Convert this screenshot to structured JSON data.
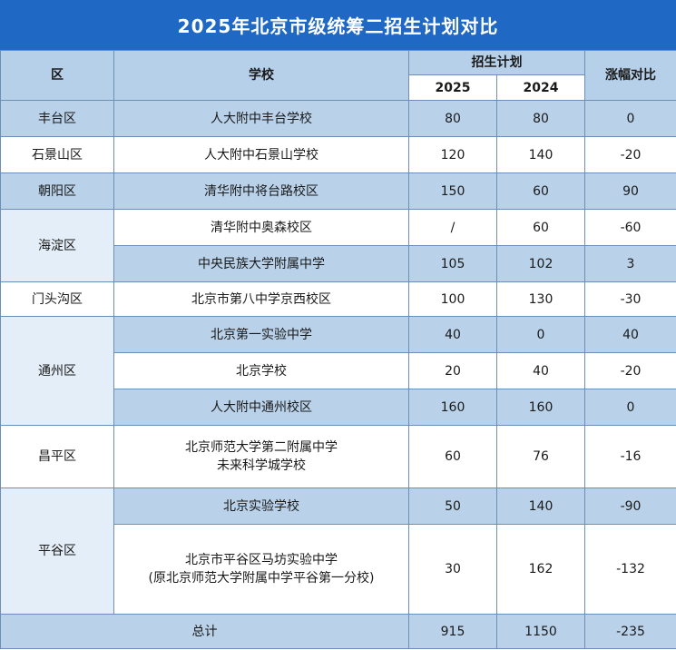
{
  "title": "2025年北京市级统筹二招生计划对比",
  "headers": {
    "district": "区",
    "school": "学校",
    "plan": "招生计划",
    "y2025": "2025",
    "y2024": "2024",
    "change": "涨幅对比"
  },
  "rows": [
    {
      "district": "丰台区",
      "school": [
        "人大附中丰台学校"
      ],
      "v2025": "80",
      "v2024": "80",
      "diff": "0"
    },
    {
      "district": "石景山区",
      "school": [
        "人大附中石景山学校"
      ],
      "v2025": "120",
      "v2024": "140",
      "diff": "-20"
    },
    {
      "district": "朝阳区",
      "school": [
        "清华附中将台路校区"
      ],
      "v2025": "150",
      "v2024": "60",
      "diff": "90"
    },
    {
      "district": "海淀区",
      "school": [
        "清华附中奥森校区"
      ],
      "v2025": "/",
      "v2024": "60",
      "diff": "-60"
    },
    {
      "district": "",
      "school": [
        "中央民族大学附属中学"
      ],
      "v2025": "105",
      "v2024": "102",
      "diff": "3"
    },
    {
      "district": "门头沟区",
      "school": [
        "北京市第八中学京西校区"
      ],
      "v2025": "100",
      "v2024": "130",
      "diff": "-30"
    },
    {
      "district": "通州区",
      "school": [
        "北京第一实验中学"
      ],
      "v2025": "40",
      "v2024": "0",
      "diff": "40"
    },
    {
      "district": "",
      "school": [
        "北京学校"
      ],
      "v2025": "20",
      "v2024": "40",
      "diff": "-20"
    },
    {
      "district": "",
      "school": [
        "人大附中通州校区"
      ],
      "v2025": "160",
      "v2024": "160",
      "diff": "0"
    },
    {
      "district": "昌平区",
      "school": [
        "北京师范大学第二附属中学",
        "未来科学城学校"
      ],
      "v2025": "60",
      "v2024": "76",
      "diff": "-16"
    },
    {
      "district": "平谷区",
      "school": [
        "北京实验学校"
      ],
      "v2025": "50",
      "v2024": "140",
      "diff": "-90"
    },
    {
      "district": "",
      "school": [
        "北京市平谷区马坊实验中学",
        "(原北京师范大学附属中学平谷第一分校)"
      ],
      "v2025": "30",
      "v2024": "162",
      "diff": "-132"
    }
  ],
  "total": {
    "label": "总计",
    "v2025": "915",
    "v2024": "1150",
    "diff": "-235"
  }
}
